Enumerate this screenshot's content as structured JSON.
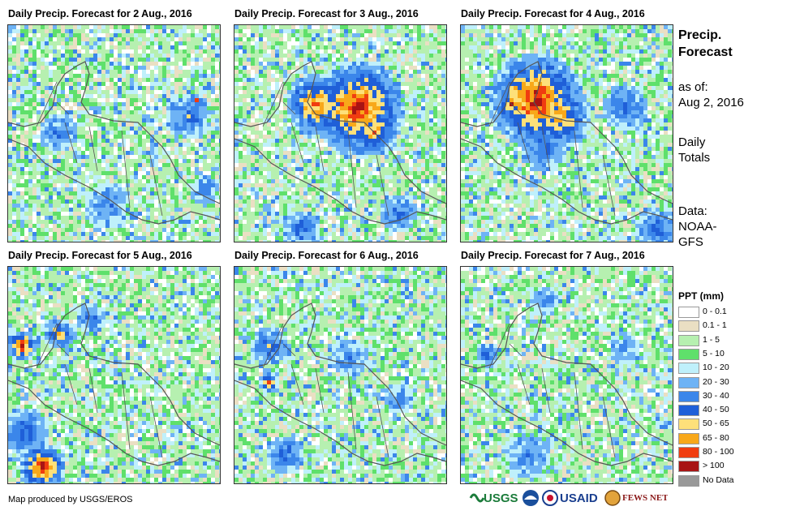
{
  "panels": [
    {
      "title": "Daily Precip. Forecast for 2 Aug., 2016"
    },
    {
      "title": "Daily Precip. Forecast for 3 Aug., 2016"
    },
    {
      "title": "Daily Precip. Forecast for 4 Aug., 2016"
    },
    {
      "title": "Daily Precip. Forecast for 5 Aug., 2016"
    },
    {
      "title": "Daily Precip. Forecast for 6 Aug., 2016"
    },
    {
      "title": "Daily Precip. Forecast for 7 Aug., 2016"
    }
  ],
  "side": {
    "title_line1": "Precip.",
    "title_line2": "Forecast",
    "asof_line1": "as of:",
    "asof_line2": "Aug 2, 2016",
    "totals_line1": "Daily",
    "totals_line2": "Totals",
    "data_line1": "Data:",
    "data_line2": "NOAA-",
    "data_line3": "GFS"
  },
  "legend": {
    "title": "PPT (mm)",
    "items": [
      {
        "label": "0 - 0.1",
        "color": "#ffffff"
      },
      {
        "label": "0.1 - 1",
        "color": "#eadfc3"
      },
      {
        "label": "1 - 5",
        "color": "#b6f0b0"
      },
      {
        "label": "5 - 10",
        "color": "#5fe06b"
      },
      {
        "label": "10 - 20",
        "color": "#bff0fb"
      },
      {
        "label": "20 - 30",
        "color": "#6eb3f5"
      },
      {
        "label": "30 - 40",
        "color": "#3b86ea"
      },
      {
        "label": "40 - 50",
        "color": "#1f5fd8"
      },
      {
        "label": "50 - 65",
        "color": "#fde07a"
      },
      {
        "label": "65 - 80",
        "color": "#f8a81a"
      },
      {
        "label": "80 - 100",
        "color": "#f03d10"
      },
      {
        "label": "> 100",
        "color": "#a81414"
      },
      {
        "label": "No Data",
        "color": "#999999"
      }
    ]
  },
  "footer": {
    "credit": "Map produced by USGS/EROS",
    "logos": [
      "USGS",
      "NOAA",
      "USAID",
      "FEWS NET"
    ]
  }
}
